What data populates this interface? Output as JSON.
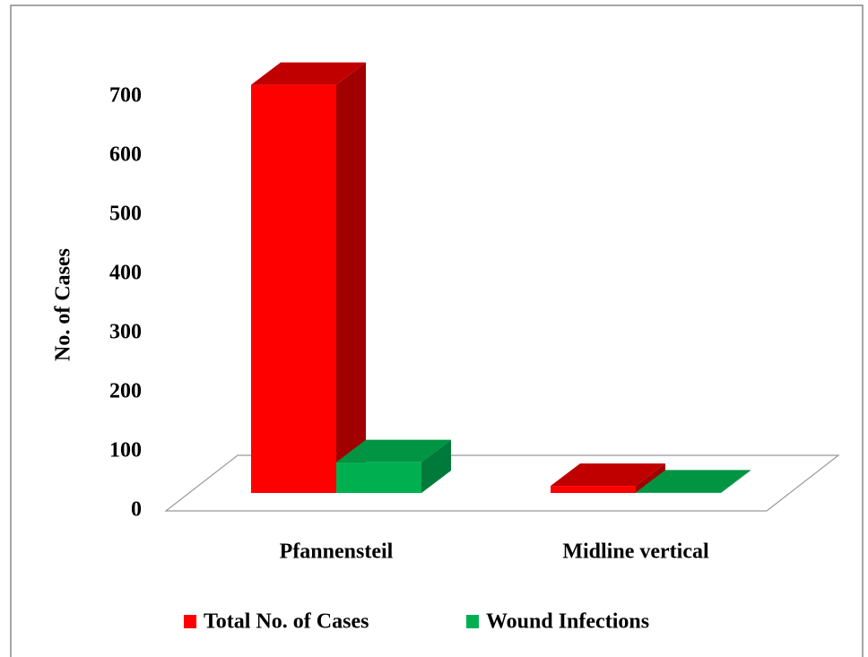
{
  "chart_data": {
    "type": "bar3d",
    "categories": [
      "Pfannensteil",
      "Midline vertical"
    ],
    "series": [
      {
        "name": "Total No. of Cases",
        "color": "#ff0000",
        "side": "#a00000",
        "top": "#c00000",
        "values": [
          690,
          12
        ]
      },
      {
        "name": "Wound Infections",
        "color": "#00b050",
        "side": "#007a3a",
        "top": "#009443",
        "values": [
          52,
          1
        ]
      }
    ],
    "y_label": "No. of Cases",
    "ylim": [
      0,
      700
    ],
    "yticks": [
      0,
      100,
      200,
      300,
      400,
      500,
      600,
      700
    ],
    "legend": "bottom"
  }
}
